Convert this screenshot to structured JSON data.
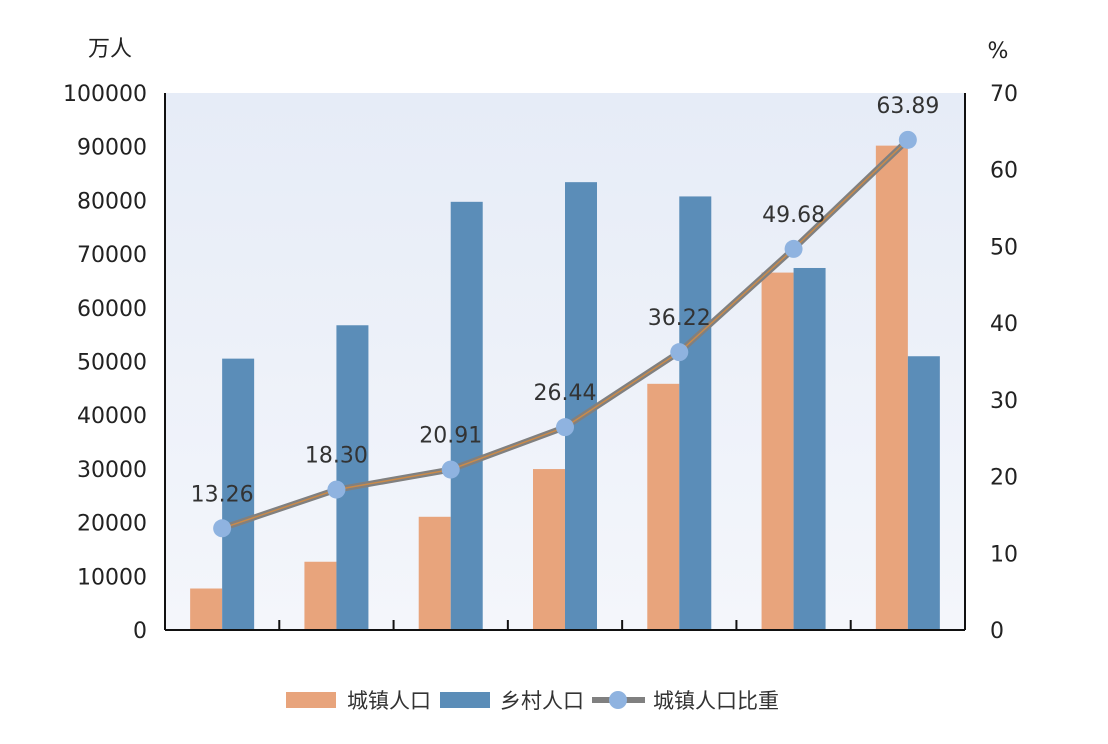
{
  "chart_data": {
    "type": "bar",
    "title": "",
    "ylabel_left": "万人",
    "ylabel_right": "%",
    "ylim_left": [
      0,
      100000
    ],
    "ylim_right": [
      0,
      70
    ],
    "yticks_left": [
      "0",
      "10000",
      "20000",
      "30000",
      "40000",
      "50000",
      "60000",
      "70000",
      "80000",
      "90000",
      "100000"
    ],
    "yticks_right": [
      "0",
      "10",
      "20",
      "30",
      "40",
      "50",
      "60",
      "70"
    ],
    "categories": [
      "",
      "",
      "",
      "",
      "",
      "",
      ""
    ],
    "grid": false,
    "legend_position": "bottom",
    "series": [
      {
        "name": "城镇人口",
        "type": "bar",
        "axis": "left",
        "color": "#e8a47c",
        "values": [
          7726,
          12710,
          21082,
          29971,
          45844,
          66557,
          90199
        ]
      },
      {
        "name": "乡村人口",
        "type": "bar",
        "axis": "left",
        "color": "#5b8db8",
        "values": [
          50534,
          56748,
          79736,
          83397,
          80739,
          67415,
          50979
        ]
      },
      {
        "name": "城镇人口比重",
        "type": "line",
        "axis": "right",
        "color": "#808080",
        "marker_color": "#8fb3e0",
        "values": [
          13.26,
          18.3,
          20.91,
          26.44,
          36.22,
          49.68,
          63.89
        ],
        "labels": [
          "13.26",
          "18.30",
          "20.91",
          "26.44",
          "36.22",
          "49.68",
          "63.89"
        ]
      }
    ],
    "plot_background": "#eef2fa"
  }
}
